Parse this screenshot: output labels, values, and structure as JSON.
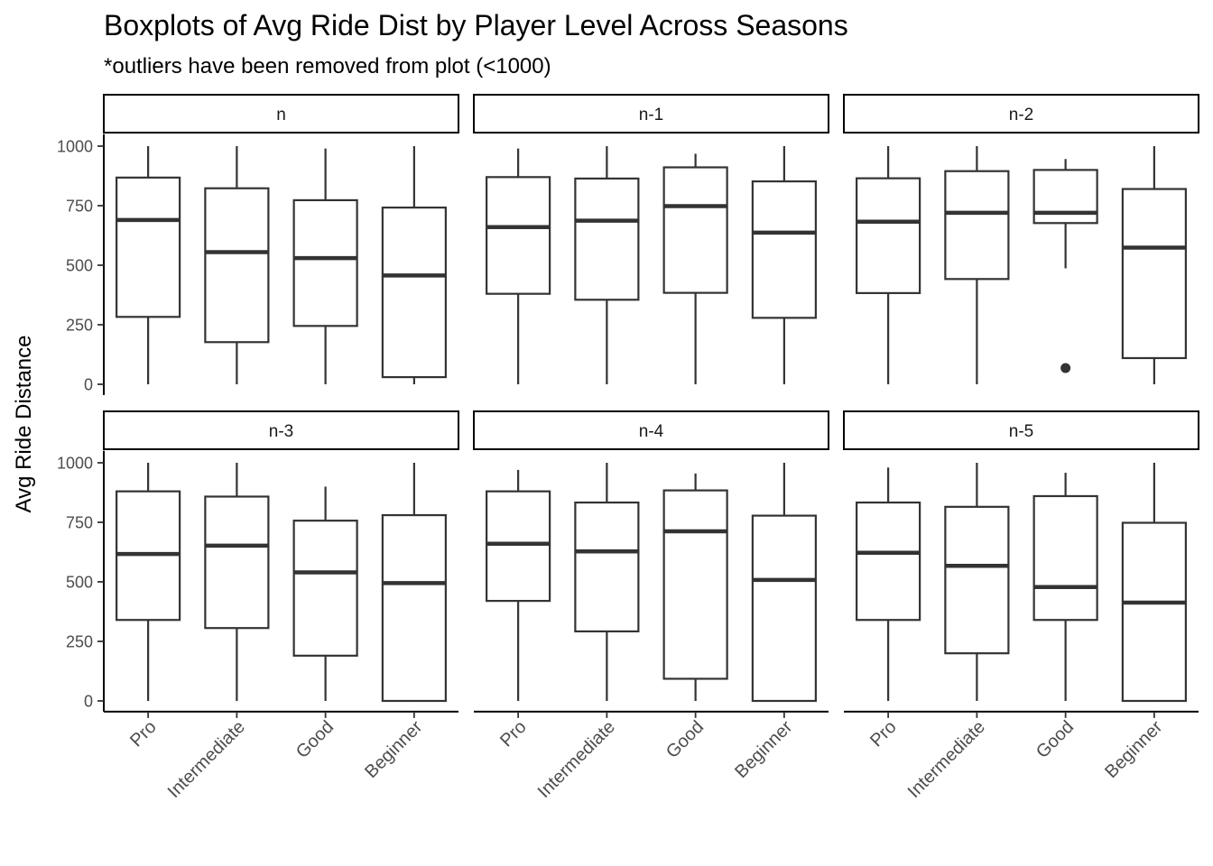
{
  "chart_data": {
    "type": "boxplot",
    "title": "Boxplots of Avg Ride Dist by Player Level Across Seasons",
    "subtitle": "*outliers have been removed from plot (<1000)",
    "xlabel": "",
    "ylabel": "Avg Ride Distance",
    "ylim": [
      -45,
      1050
    ],
    "yticks": [
      0,
      250,
      500,
      750,
      1000
    ],
    "categories": [
      "Pro",
      "Intermediate",
      "Good",
      "Beginner"
    ],
    "grid": false,
    "layout": "facet grid, 2 rows x 3 columns",
    "panels": [
      {
        "name": "n",
        "boxes": [
          {
            "category": "Pro",
            "min": 0,
            "q1": 283,
            "median": 690,
            "q3": 868,
            "max": 1000
          },
          {
            "category": "Intermediate",
            "min": 0,
            "q1": 177,
            "median": 555,
            "q3": 823,
            "max": 1000
          },
          {
            "category": "Good",
            "min": 0,
            "q1": 245,
            "median": 530,
            "q3": 773,
            "max": 990
          },
          {
            "category": "Beginner",
            "min": 0,
            "q1": 30,
            "median": 457,
            "q3": 742,
            "max": 1000
          }
        ],
        "outliers": []
      },
      {
        "name": "n-1",
        "boxes": [
          {
            "category": "Pro",
            "min": 0,
            "q1": 380,
            "median": 660,
            "q3": 870,
            "max": 990
          },
          {
            "category": "Intermediate",
            "min": 0,
            "q1": 355,
            "median": 687,
            "q3": 864,
            "max": 1000
          },
          {
            "category": "Good",
            "min": 0,
            "q1": 384,
            "median": 748,
            "q3": 911,
            "max": 968
          },
          {
            "category": "Beginner",
            "min": 0,
            "q1": 279,
            "median": 637,
            "q3": 852,
            "max": 1000
          }
        ],
        "outliers": []
      },
      {
        "name": "n-2",
        "boxes": [
          {
            "category": "Pro",
            "min": 0,
            "q1": 383,
            "median": 683,
            "q3": 865,
            "max": 1000
          },
          {
            "category": "Intermediate",
            "min": 0,
            "q1": 442,
            "median": 720,
            "q3": 895,
            "max": 1000
          },
          {
            "category": "Good",
            "min": 487,
            "q1": 677,
            "median": 720,
            "q3": 900,
            "max": 946
          },
          {
            "category": "Beginner",
            "min": 0,
            "q1": 110,
            "median": 574,
            "q3": 820,
            "max": 1000
          }
        ],
        "outliers": [
          {
            "category": "Good",
            "value": 68
          }
        ]
      },
      {
        "name": "n-3",
        "boxes": [
          {
            "category": "Pro",
            "min": 0,
            "q1": 340,
            "median": 617,
            "q3": 880,
            "max": 1000
          },
          {
            "category": "Intermediate",
            "min": 0,
            "q1": 306,
            "median": 652,
            "q3": 858,
            "max": 1000
          },
          {
            "category": "Good",
            "min": 0,
            "q1": 190,
            "median": 540,
            "q3": 757,
            "max": 900
          },
          {
            "category": "Beginner",
            "min": 0,
            "q1": 0,
            "median": 495,
            "q3": 780,
            "max": 1000
          }
        ],
        "outliers": []
      },
      {
        "name": "n-4",
        "boxes": [
          {
            "category": "Pro",
            "min": 0,
            "q1": 420,
            "median": 660,
            "q3": 880,
            "max": 970
          },
          {
            "category": "Intermediate",
            "min": 0,
            "q1": 292,
            "median": 628,
            "q3": 833,
            "max": 1000
          },
          {
            "category": "Good",
            "min": 0,
            "q1": 93,
            "median": 712,
            "q3": 884,
            "max": 955
          },
          {
            "category": "Beginner",
            "min": 0,
            "q1": 0,
            "median": 508,
            "q3": 778,
            "max": 1000
          }
        ],
        "outliers": []
      },
      {
        "name": "n-5",
        "boxes": [
          {
            "category": "Pro",
            "min": 0,
            "q1": 340,
            "median": 622,
            "q3": 833,
            "max": 980
          },
          {
            "category": "Intermediate",
            "min": 0,
            "q1": 200,
            "median": 567,
            "q3": 815,
            "max": 1000
          },
          {
            "category": "Good",
            "min": 0,
            "q1": 340,
            "median": 478,
            "q3": 860,
            "max": 958
          },
          {
            "category": "Beginner",
            "min": 0,
            "q1": 0,
            "median": 413,
            "q3": 748,
            "max": 1000
          }
        ],
        "outliers": []
      }
    ]
  }
}
